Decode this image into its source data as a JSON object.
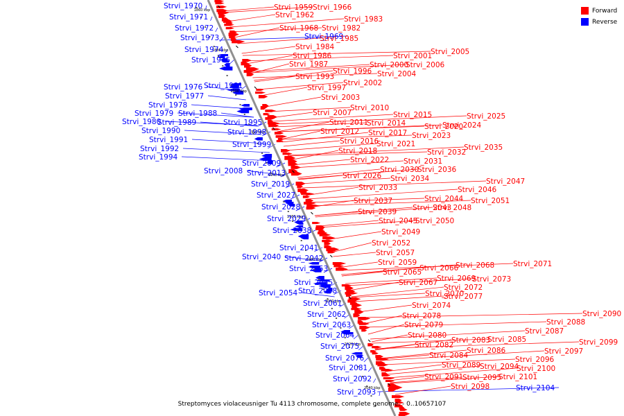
{
  "caption": "Streptomyces violaceusniger Tu 4113 chromosome, complete genome. - 0..10657107",
  "legend": [
    {
      "label": "Forward",
      "color": "#ff0000"
    },
    {
      "label": "Reverse",
      "color": "#0000ff"
    }
  ],
  "colors": {
    "forward": "#ff0000",
    "reverse": "#0000ff",
    "backbone": "#909090"
  },
  "ticks": [
    "1860 kbp",
    "1880 kbp",
    "1900 kbp",
    "1920 kbp",
    "1940 kbp",
    "1960 kbp",
    "1980 kbp",
    "2000 kbp",
    "2020 kbp",
    "2040 kbp"
  ],
  "reverse_labels": [
    "Strvi_1970",
    "Strvi_1971",
    "Strvi_1972",
    "Strvi_1973",
    "Strvi_1974",
    "Strvi_1975",
    "Strvi_1976",
    "Strvi_1977",
    "Strvi_1981",
    "Strvi_1978",
    "Strvi_1979",
    "Strvi_1988",
    "Strvi_1980",
    "Strvi_1989",
    "Strvi_1995",
    "Strvi_1990",
    "Strvi_1998",
    "Strvi_1991",
    "Strvi_1999",
    "Strvi_1992",
    "Strvi_1994",
    "Strvi_2009",
    "Strvi_2008",
    "Strvi_2013",
    "Strvi_2019",
    "Strvi_2027",
    "Strvi_2028",
    "Strvi_2029",
    "Strvi_2038",
    "Strvi_2041",
    "Strvi_2040",
    "Strvi_2042",
    "Strvi_2053",
    "Strvi_2055",
    "Strvi_2054",
    "Strvi_2058",
    "Strvi_2061",
    "Strvi_2062",
    "Strvi_2063",
    "Strvi_2064",
    "Strvi_2075",
    "Strvi_2076",
    "Strvi_2081",
    "Strvi_2092",
    "Strvi_2093",
    "Strvi_1969",
    "Strvi_2104"
  ],
  "forward_labels": [
    "Strvi_1959",
    "Strvi_1966",
    "Strvi_1962",
    "Strvi_1983",
    "Strvi_1968",
    "Strvi_1982",
    "Strvi_1985",
    "Strvi_1984",
    "Strvi_1986",
    "Strvi_1987",
    "Strvi_2005",
    "Strvi_2001",
    "Strvi_2000",
    "Strvi_2006",
    "Strvi_1996",
    "Strvi_2004",
    "Strvi_1993",
    "Strvi_2002",
    "Strvi_1997",
    "Strvi_2003",
    "Strvi_2010",
    "Strvi_2007",
    "Strvi_2015",
    "Strvi_2025",
    "Strvi_2011",
    "Strvi_2014",
    "Strvi_2020",
    "Strvi_2024",
    "Strvi_2012",
    "Strvi_2017",
    "Strvi_2023",
    "Strvi_2016",
    "Strvi_2021",
    "Strvi_2035",
    "Strvi_2018",
    "Strvi_2032",
    "Strvi_2022",
    "Strvi_2031",
    "Strvi_2030",
    "Strvi_2036",
    "Strvi_2026",
    "Strvi_2034",
    "Strvi_2047",
    "Strvi_2033",
    "Strvi_2046",
    "Strvi_2044",
    "Strvi_2051",
    "Strvi_2037",
    "Strvi_2043",
    "Strvi_2048",
    "Strvi_2039",
    "Strvi_2045",
    "Strvi_2050",
    "Strvi_2049",
    "Strvi_2052",
    "Strvi_2057",
    "Strvi_2059",
    "Strvi_2071",
    "Strvi_2066",
    "Strvi_2068",
    "Strvi_2065",
    "Strvi_2069",
    "Strvi_2073",
    "Strvi_2067",
    "Strvi_2072",
    "Strvi_2070",
    "Strvi_2077",
    "Strvi_2074",
    "Strvi_2078",
    "Strvi_2079",
    "Strvi_2090",
    "Strvi_2088",
    "Strvi_2080",
    "Strvi_2087",
    "Strvi_2083",
    "Strvi_2085",
    "Strvi_2082",
    "Strvi_2099",
    "Strvi_2086",
    "Strvi_2097",
    "Strvi_2084",
    "Strvi_2096",
    "Strvi_2089",
    "Strvi_2094",
    "Strvi_2100",
    "Strvi_2091",
    "Strvi_2095",
    "Strvi_2101",
    "Strvi_2098"
  ]
}
